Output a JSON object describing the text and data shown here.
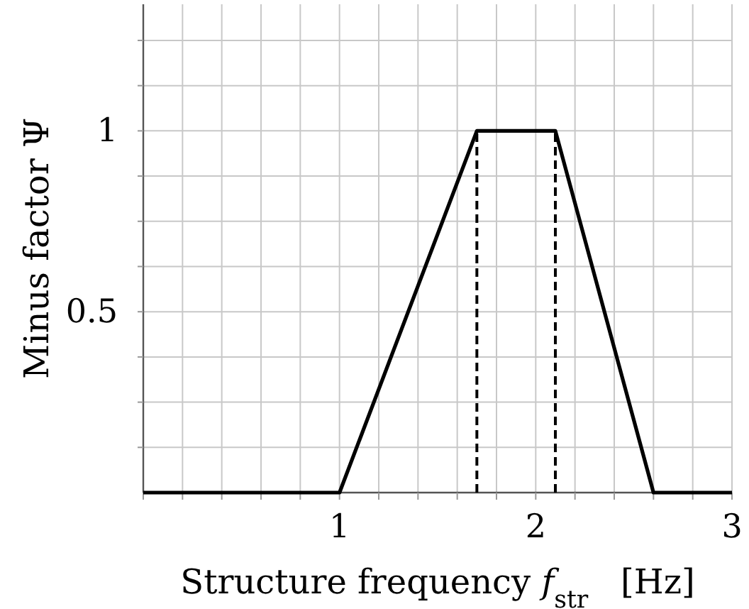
{
  "chart_data": {
    "type": "line",
    "xlabel": "Structure frequency f$_{str}$   [Hz]",
    "ylabel": "Minus factor Ψ",
    "xlim": [
      0,
      3
    ],
    "ylim": [
      0,
      1.35
    ],
    "xticks": [
      {
        "value": 0,
        "label": null
      },
      {
        "value": 0.2,
        "label": null
      },
      {
        "value": 0.4,
        "label": null
      },
      {
        "value": 0.6,
        "label": null
      },
      {
        "value": 0.8,
        "label": null
      },
      1,
      {
        "value": 1.2,
        "label": null
      },
      {
        "value": 1.4,
        "label": null
      },
      {
        "value": 1.6,
        "label": null
      },
      {
        "value": 1.8,
        "label": null
      },
      2,
      {
        "value": 2.2,
        "label": null
      },
      {
        "value": 2.4,
        "label": null
      },
      {
        "value": 2.6,
        "label": null
      },
      {
        "value": 2.8,
        "label": null
      },
      3
    ],
    "yticks": [
      {
        "value": 0.125,
        "label": null
      },
      {
        "value": 0.25,
        "label": null
      },
      {
        "value": 0.375,
        "label": null
      },
      0.5,
      {
        "value": 0.625,
        "label": null
      },
      {
        "value": 0.75,
        "label": null
      },
      {
        "value": 0.875,
        "label": null
      },
      1,
      {
        "value": 1.125,
        "label": null
      },
      {
        "value": 1.25,
        "label": null
      }
    ],
    "grid": true,
    "series": [
      {
        "x": [
          0,
          1,
          1.7,
          2.1,
          2.6,
          3
        ],
        "values": [
          0,
          0,
          1,
          1,
          0,
          0
        ],
        "color": "#000000",
        "line_style": "solid"
      },
      {
        "x": [
          1.7,
          1.7
        ],
        "values": [
          0,
          1
        ],
        "color": "#000000",
        "line_style": "dashed"
      },
      {
        "x": [
          2.1,
          2.1
        ],
        "values": [
          0,
          1
        ],
        "color": "#000000",
        "line_style": "dashed"
      }
    ]
  }
}
